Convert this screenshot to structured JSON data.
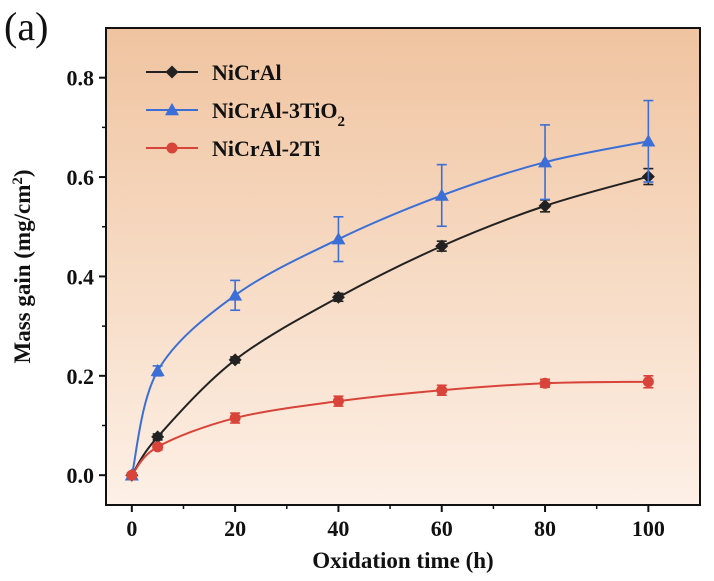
{
  "chart_data": {
    "type": "line",
    "panel_label": "(a)",
    "xlabel": "Oxidation time (h)",
    "ylabel": "Mass gain (mg/cm",
    "ylabel_sup": "2",
    "ylabel_close": ")",
    "xlim": [
      -5,
      110
    ],
    "ylim": [
      -0.06,
      0.9
    ],
    "xticks": [
      0,
      20,
      40,
      60,
      80,
      100
    ],
    "yticks": [
      0.0,
      0.2,
      0.4,
      0.6,
      0.8
    ],
    "xtick_labels": [
      "0",
      "20",
      "40",
      "60",
      "80",
      "100"
    ],
    "ytick_labels": [
      "0.0",
      "0.2",
      "0.4",
      "0.6",
      "0.8"
    ],
    "legend_position": "top-left",
    "background_gradient": [
      "#f0c4a0",
      "#fdf0e6"
    ],
    "series": [
      {
        "name": "NiCrAl",
        "name_sub": "",
        "color": "#222222",
        "marker": "diamond",
        "x": [
          0,
          5,
          20,
          40,
          60,
          80,
          100
        ],
        "y": [
          0.0,
          0.077,
          0.232,
          0.358,
          0.461,
          0.542,
          0.601
        ],
        "err": [
          0.004,
          0.006,
          0.006,
          0.008,
          0.01,
          0.012,
          0.016
        ]
      },
      {
        "name": "NiCrAl-3TiO",
        "name_sub": "2",
        "color": "#3b6fd6",
        "marker": "triangle",
        "x": [
          0,
          5,
          20,
          40,
          60,
          80,
          100
        ],
        "y": [
          0.0,
          0.21,
          0.362,
          0.475,
          0.563,
          0.63,
          0.672
        ],
        "err": [
          0.004,
          0.01,
          0.03,
          0.045,
          0.062,
          0.075,
          0.082
        ]
      },
      {
        "name": "NiCrAl-2Ti",
        "name_sub": "",
        "color": "#d9443a",
        "marker": "circle",
        "x": [
          0,
          5,
          20,
          40,
          60,
          80,
          100
        ],
        "y": [
          0.0,
          0.057,
          0.115,
          0.149,
          0.171,
          0.185,
          0.188
        ],
        "err": [
          0.004,
          0.006,
          0.01,
          0.01,
          0.01,
          0.008,
          0.012
        ]
      }
    ]
  }
}
